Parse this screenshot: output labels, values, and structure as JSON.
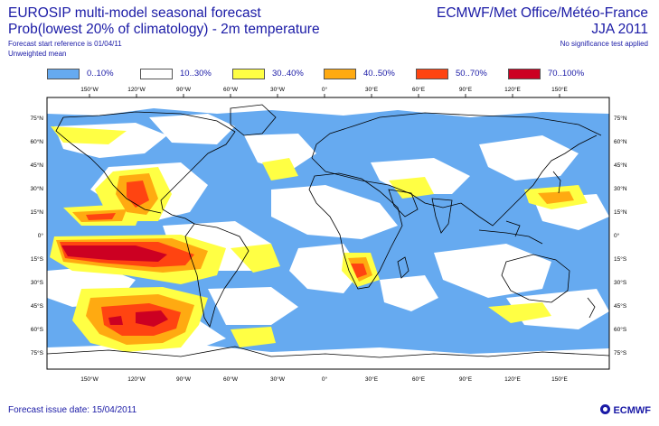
{
  "header": {
    "title_left": "EUROSIP multi-model seasonal forecast",
    "title_right": "ECMWF/Met Office/Météo-France",
    "subtitle_left": "Prob(lowest 20% of climatology) - 2m temperature",
    "subtitle_right": "JJA 2011",
    "forecast_reference": "Forecast start reference is 01/04/11",
    "significance_note": "No significance test applied",
    "weighting": "Unweighted mean"
  },
  "legend": [
    {
      "label": "0..10%",
      "color": "#66aaf0"
    },
    {
      "label": "10..30%",
      "color": "#ffffff"
    },
    {
      "label": "30..40%",
      "color": "#ffff44"
    },
    {
      "label": "40..50%",
      "color": "#ffaa11"
    },
    {
      "label": "50..70%",
      "color": "#ff4411"
    },
    {
      "label": "70..100%",
      "color": "#cc0022"
    }
  ],
  "map": {
    "lon_ticks": [
      "150°W",
      "120°W",
      "90°W",
      "60°W",
      "30°W",
      "0°",
      "30°E",
      "60°E",
      "90°E",
      "120°E",
      "150°E"
    ],
    "lat_ticks": [
      "75°N",
      "60°N",
      "45°N",
      "30°N",
      "15°N",
      "0°",
      "15°S",
      "30°S",
      "45°S",
      "60°S",
      "75°S"
    ]
  },
  "footer": {
    "issue_date": "Forecast issue date: 15/04/2011",
    "logo": "ECMWF"
  },
  "colors": {
    "text": "#1a1aa6",
    "coastline": "#000000",
    "frame": "#000000"
  }
}
